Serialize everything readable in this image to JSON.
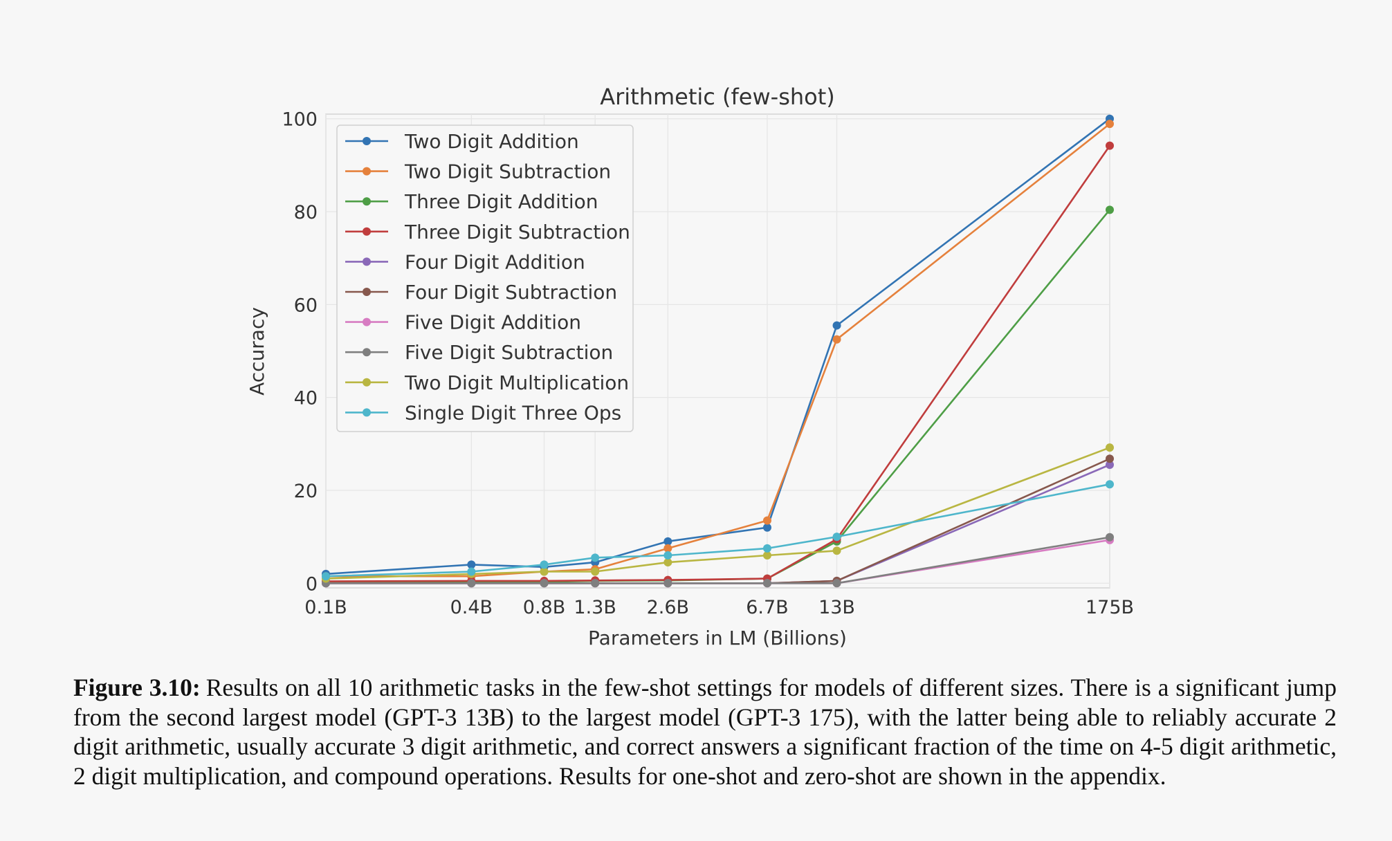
{
  "chart_data": {
    "type": "line",
    "title": "Arithmetic (few-shot)",
    "xlabel": "Parameters in LM (Billions)",
    "ylabel": "Accuracy",
    "xscale": "log",
    "x": [
      0.1,
      0.4,
      0.8,
      1.3,
      2.6,
      6.7,
      13,
      175
    ],
    "x_tick_labels": [
      "0.1B",
      "0.4B",
      "0.8B",
      "1.3B",
      "2.6B",
      "6.7B",
      "13B",
      "175B"
    ],
    "ylim": [
      -1,
      101
    ],
    "y_ticks": [
      0,
      20,
      40,
      60,
      80,
      100
    ],
    "grid": true,
    "legend_position": "top-left",
    "series": [
      {
        "name": "Two Digit Addition",
        "color": "#3274b3",
        "values": [
          2.0,
          4.0,
          3.5,
          4.5,
          9.0,
          12.0,
          55.5,
          100.0
        ]
      },
      {
        "name": "Two Digit Subtraction",
        "color": "#e5813c",
        "values": [
          1.5,
          1.5,
          2.5,
          3.0,
          7.5,
          13.5,
          52.5,
          98.9
        ]
      },
      {
        "name": "Three Digit Addition",
        "color": "#4e9e46",
        "values": [
          0.3,
          0.3,
          0.3,
          0.5,
          0.6,
          1.0,
          9.0,
          80.4
        ]
      },
      {
        "name": "Three Digit Subtraction",
        "color": "#c03d3d",
        "values": [
          0.4,
          0.5,
          0.5,
          0.6,
          0.7,
          1.0,
          9.5,
          94.2
        ]
      },
      {
        "name": "Four Digit Addition",
        "color": "#8a69b8",
        "values": [
          0.0,
          0.0,
          0.0,
          0.0,
          0.0,
          0.0,
          0.5,
          25.5
        ]
      },
      {
        "name": "Four Digit Subtraction",
        "color": "#87584d",
        "values": [
          0.0,
          0.0,
          0.0,
          0.0,
          0.0,
          0.0,
          0.5,
          26.8
        ]
      },
      {
        "name": "Five Digit Addition",
        "color": "#d77cc2",
        "values": [
          0.0,
          0.0,
          0.0,
          0.0,
          0.0,
          0.0,
          0.0,
          9.3
        ]
      },
      {
        "name": "Five Digit Subtraction",
        "color": "#7f7f7f",
        "values": [
          0.0,
          0.0,
          0.0,
          0.0,
          0.0,
          0.0,
          0.0,
          9.9
        ]
      },
      {
        "name": "Two Digit Multiplication",
        "color": "#b9b642",
        "values": [
          1.0,
          2.0,
          2.5,
          2.5,
          4.5,
          6.0,
          7.0,
          29.2
        ]
      },
      {
        "name": "Single Digit Three Ops",
        "color": "#4eb6cb",
        "values": [
          1.5,
          2.5,
          4.0,
          5.5,
          6.0,
          7.5,
          10.0,
          21.3
        ]
      }
    ]
  },
  "caption": {
    "label": "Figure 3.10:",
    "text": "Results on all 10 arithmetic tasks in the few-shot settings for models of different sizes. There is a significant jump from the second largest model (GPT-3 13B) to the largest model (GPT-3 175), with the latter being able to reliably accurate 2 digit arithmetic, usually accurate 3 digit arithmetic, and correct answers a significant fraction of the time on 4-5 digit arithmetic, 2 digit multiplication, and compound operations. Results for one-shot and zero-shot are shown in the appendix."
  }
}
